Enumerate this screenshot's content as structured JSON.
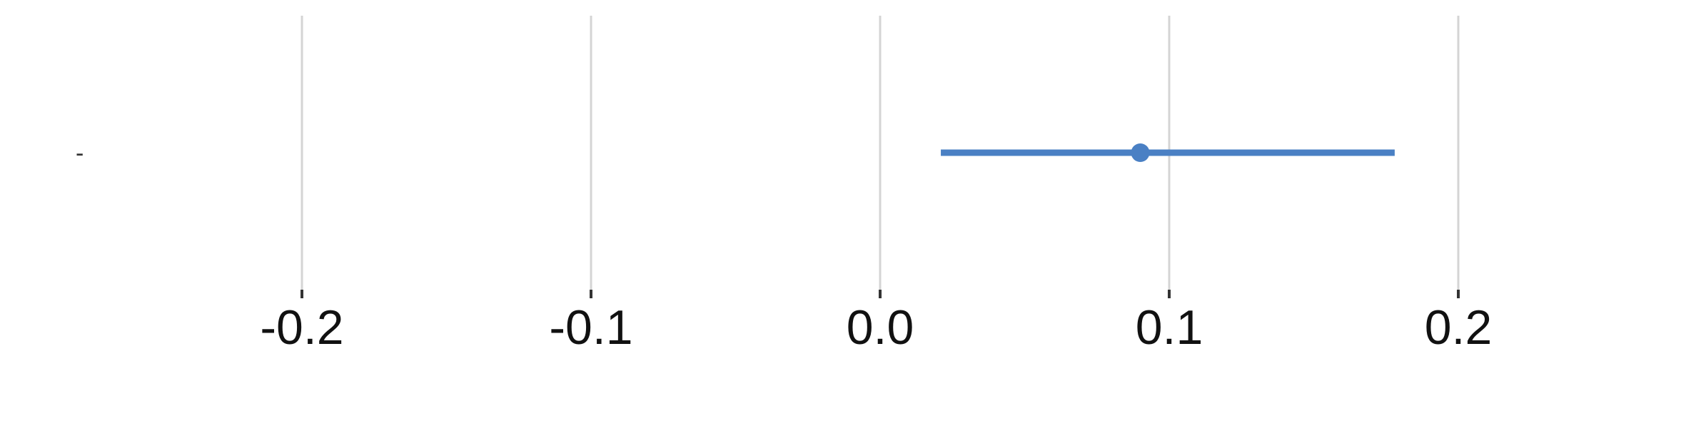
{
  "chart_data": {
    "type": "forest",
    "title": "",
    "xlabel": "",
    "ylabel": "",
    "xlim": [
      -0.3,
      0.28
    ],
    "x_ticks": [
      -0.2,
      -0.1,
      0.0,
      0.1,
      0.2
    ],
    "x_tick_labels": [
      "-0.2",
      "-0.1",
      "0.0",
      "0.1",
      "0.2"
    ],
    "grid": true,
    "rows": [
      {
        "label": "-",
        "estimate": 0.09,
        "ci_low": 0.021,
        "ci_high": 0.178
      }
    ],
    "colors": {
      "series": "#4a80c4",
      "grid": "#d4d4d4"
    }
  }
}
